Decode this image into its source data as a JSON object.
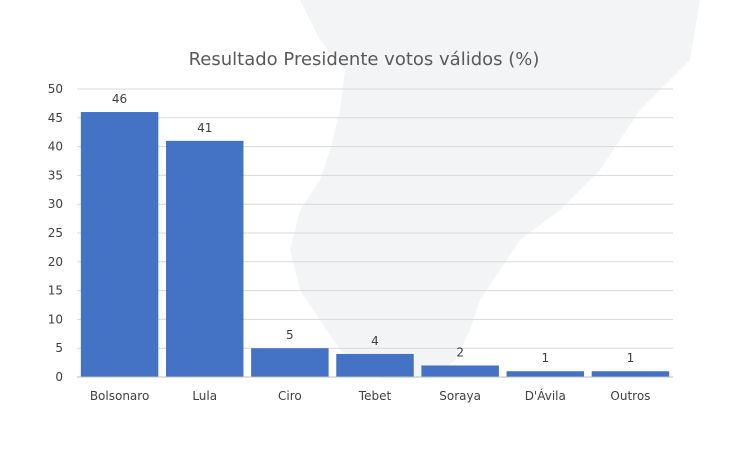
{
  "chart_data": {
    "type": "bar",
    "title": "Resultado Presidente votos válidos (%)",
    "xlabel": "",
    "ylabel": "",
    "categories": [
      "Bolsonaro",
      "Lula",
      "Ciro",
      "Tebet",
      "Soraya",
      "D'Ávila",
      "Outros"
    ],
    "values": [
      46,
      41,
      5,
      4,
      2,
      1,
      1
    ],
    "data_labels": [
      "46",
      "41",
      "5",
      "4",
      "2",
      "1",
      "1"
    ],
    "ylim": [
      0,
      50
    ],
    "yticks": [
      0,
      5,
      10,
      15,
      20,
      25,
      30,
      35,
      40,
      45,
      50
    ],
    "ytick_labels": [
      "0",
      "5",
      "10",
      "15",
      "20",
      "25",
      "30",
      "35",
      "40",
      "45",
      "50"
    ],
    "grid": true,
    "legend": "none",
    "colors": {
      "bar": "#4472c4",
      "background_map": "#f3f4f5"
    }
  }
}
